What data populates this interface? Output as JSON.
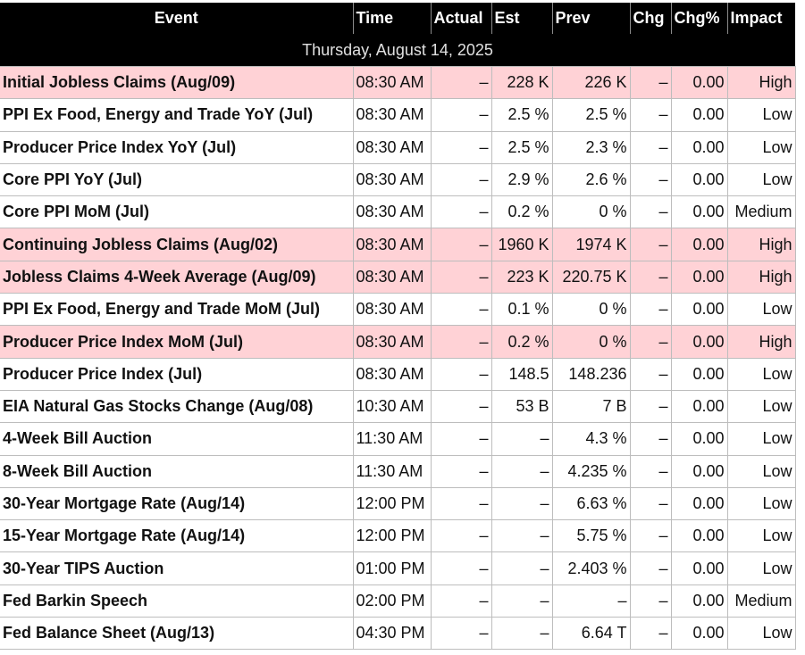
{
  "columns": {
    "event": "Event",
    "time": "Time",
    "actual": "Actual",
    "est": "Est",
    "prev": "Prev",
    "chg": "Chg",
    "chg_pct": "Chg%",
    "impact": "Impact"
  },
  "date_label": "Thursday, August 14, 2025",
  "colors": {
    "header_bg": "#000000",
    "header_text": "#ffffff",
    "high_impact_row": "#ffd2d6",
    "normal_row": "#ffffff"
  },
  "events": [
    {
      "event": "Initial Jobless Claims (Aug/09)",
      "time": "08:30 AM",
      "actual": "–",
      "est": "228 K",
      "prev": "226 K",
      "chg": "–",
      "chg_pct": "0.00",
      "impact": "High"
    },
    {
      "event": "PPI Ex Food, Energy and Trade YoY (Jul)",
      "time": "08:30 AM",
      "actual": "–",
      "est": "2.5 %",
      "prev": "2.5 %",
      "chg": "–",
      "chg_pct": "0.00",
      "impact": "Low"
    },
    {
      "event": "Producer Price Index YoY (Jul)",
      "time": "08:30 AM",
      "actual": "–",
      "est": "2.5 %",
      "prev": "2.3 %",
      "chg": "–",
      "chg_pct": "0.00",
      "impact": "Low"
    },
    {
      "event": "Core PPI YoY (Jul)",
      "time": "08:30 AM",
      "actual": "–",
      "est": "2.9 %",
      "prev": "2.6 %",
      "chg": "–",
      "chg_pct": "0.00",
      "impact": "Low"
    },
    {
      "event": "Core PPI MoM (Jul)",
      "time": "08:30 AM",
      "actual": "–",
      "est": "0.2 %",
      "prev": "0 %",
      "chg": "–",
      "chg_pct": "0.00",
      "impact": "Medium"
    },
    {
      "event": "Continuing Jobless Claims (Aug/02)",
      "time": "08:30 AM",
      "actual": "–",
      "est": "1960 K",
      "prev": "1974 K",
      "chg": "–",
      "chg_pct": "0.00",
      "impact": "High"
    },
    {
      "event": "Jobless Claims 4-Week Average (Aug/09)",
      "time": "08:30 AM",
      "actual": "–",
      "est": "223 K",
      "prev": "220.75 K",
      "chg": "–",
      "chg_pct": "0.00",
      "impact": "High"
    },
    {
      "event": "PPI Ex Food, Energy and Trade MoM (Jul)",
      "time": "08:30 AM",
      "actual": "–",
      "est": "0.1 %",
      "prev": "0 %",
      "chg": "–",
      "chg_pct": "0.00",
      "impact": "Low"
    },
    {
      "event": "Producer Price Index MoM (Jul)",
      "time": "08:30 AM",
      "actual": "–",
      "est": "0.2 %",
      "prev": "0 %",
      "chg": "–",
      "chg_pct": "0.00",
      "impact": "High"
    },
    {
      "event": "Producer Price Index (Jul)",
      "time": "08:30 AM",
      "actual": "–",
      "est": "148.5",
      "prev": "148.236",
      "chg": "–",
      "chg_pct": "0.00",
      "impact": "Low"
    },
    {
      "event": "EIA Natural Gas Stocks Change (Aug/08)",
      "time": "10:30 AM",
      "actual": "–",
      "est": "53 B",
      "prev": "7 B",
      "chg": "–",
      "chg_pct": "0.00",
      "impact": "Low"
    },
    {
      "event": "4-Week Bill Auction",
      "time": "11:30 AM",
      "actual": "–",
      "est": "–",
      "prev": "4.3 %",
      "chg": "–",
      "chg_pct": "0.00",
      "impact": "Low"
    },
    {
      "event": "8-Week Bill Auction",
      "time": "11:30 AM",
      "actual": "–",
      "est": "–",
      "prev": "4.235 %",
      "chg": "–",
      "chg_pct": "0.00",
      "impact": "Low"
    },
    {
      "event": "30-Year Mortgage Rate (Aug/14)",
      "time": "12:00 PM",
      "actual": "–",
      "est": "–",
      "prev": "6.63 %",
      "chg": "–",
      "chg_pct": "0.00",
      "impact": "Low"
    },
    {
      "event": "15-Year Mortgage Rate (Aug/14)",
      "time": "12:00 PM",
      "actual": "–",
      "est": "–",
      "prev": "5.75 %",
      "chg": "–",
      "chg_pct": "0.00",
      "impact": "Low"
    },
    {
      "event": "30-Year TIPS Auction",
      "time": "01:00 PM",
      "actual": "–",
      "est": "–",
      "prev": "2.403 %",
      "chg": "–",
      "chg_pct": "0.00",
      "impact": "Low"
    },
    {
      "event": "Fed Barkin Speech",
      "time": "02:00 PM",
      "actual": "–",
      "est": "–",
      "prev": "–",
      "chg": "–",
      "chg_pct": "0.00",
      "impact": "Medium"
    },
    {
      "event": "Fed Balance Sheet (Aug/13)",
      "time": "04:30 PM",
      "actual": "–",
      "est": "–",
      "prev": "6.64 T",
      "chg": "–",
      "chg_pct": "0.00",
      "impact": "Low"
    }
  ]
}
